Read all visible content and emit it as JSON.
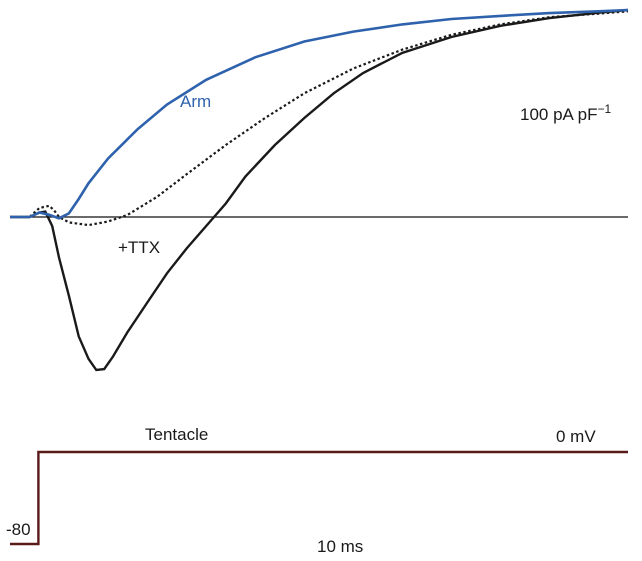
{
  "chart_data": {
    "type": "line",
    "title": "",
    "xlabel": "",
    "ylabel": "",
    "annotations": {
      "arm": "Arm",
      "ttx": "+TTX",
      "tentacle": "Tentacle",
      "current_scale": "100 pA pF",
      "current_scale_sup": "−1",
      "voltage_top": "0 mV",
      "voltage_bottom": "-80",
      "time_scale": "10 ms"
    },
    "units": {
      "x": "ms",
      "y": "pA pF−1",
      "voltage": "mV"
    },
    "voltage_protocol": {
      "holding_mV": -80,
      "step_mV": 0,
      "step_time_ms": 2.9
    },
    "series": [
      {
        "name": "Arm",
        "color": "#2f62ad",
        "style": "solid",
        "points": [
          [
            0,
            0
          ],
          [
            2,
            0
          ],
          [
            3,
            0.1
          ],
          [
            4,
            0.05
          ],
          [
            5,
            -0.03
          ],
          [
            6,
            0.08
          ],
          [
            7,
            0.4
          ],
          [
            8,
            0.75
          ],
          [
            10,
            1.3
          ],
          [
            13,
            1.95
          ],
          [
            16,
            2.5
          ],
          [
            20,
            3.05
          ],
          [
            25,
            3.55
          ],
          [
            30,
            3.9
          ],
          [
            35,
            4.12
          ],
          [
            40,
            4.28
          ],
          [
            45,
            4.4
          ],
          [
            50,
            4.47
          ],
          [
            55,
            4.53
          ],
          [
            60,
            4.57
          ],
          [
            63,
            4.6
          ]
        ]
      },
      {
        "name": "+TTX",
        "color": "#1a1a1a",
        "style": "dotted",
        "points": [
          [
            0,
            0
          ],
          [
            2,
            0
          ],
          [
            3,
            0.2
          ],
          [
            4,
            0.25
          ],
          [
            4.5,
            0.15
          ],
          [
            5,
            0
          ],
          [
            6,
            -0.12
          ],
          [
            8,
            -0.18
          ],
          [
            10,
            -0.1
          ],
          [
            12,
            0.05
          ],
          [
            15,
            0.45
          ],
          [
            18,
            0.95
          ],
          [
            22,
            1.6
          ],
          [
            26,
            2.2
          ],
          [
            30,
            2.75
          ],
          [
            35,
            3.3
          ],
          [
            40,
            3.72
          ],
          [
            45,
            4.05
          ],
          [
            50,
            4.28
          ],
          [
            55,
            4.44
          ],
          [
            60,
            4.52
          ],
          [
            63,
            4.57
          ]
        ]
      },
      {
        "name": "Tentacle",
        "color": "#1a1a1a",
        "style": "solid",
        "points": [
          [
            0,
            0
          ],
          [
            2,
            0
          ],
          [
            3,
            0.1
          ],
          [
            3.6,
            0.12
          ],
          [
            4.3,
            -0.2
          ],
          [
            5,
            -0.9
          ],
          [
            6,
            -1.75
          ],
          [
            7,
            -2.65
          ],
          [
            8,
            -3.15
          ],
          [
            8.8,
            -3.4
          ],
          [
            9.6,
            -3.38
          ],
          [
            10.5,
            -3.1
          ],
          [
            12,
            -2.55
          ],
          [
            14,
            -1.9
          ],
          [
            16,
            -1.25
          ],
          [
            18,
            -0.7
          ],
          [
            20,
            -0.2
          ],
          [
            22,
            0.3
          ],
          [
            24,
            0.9
          ],
          [
            27,
            1.6
          ],
          [
            30,
            2.2
          ],
          [
            33,
            2.75
          ],
          [
            36,
            3.2
          ],
          [
            40,
            3.65
          ],
          [
            45,
            4.0
          ],
          [
            50,
            4.25
          ],
          [
            55,
            4.42
          ],
          [
            60,
            4.54
          ],
          [
            63,
            4.6
          ]
        ]
      }
    ],
    "xlim": [
      0,
      63
    ],
    "ylim": [
      -3.5,
      4.8
    ],
    "grid": false,
    "legend": "none"
  }
}
